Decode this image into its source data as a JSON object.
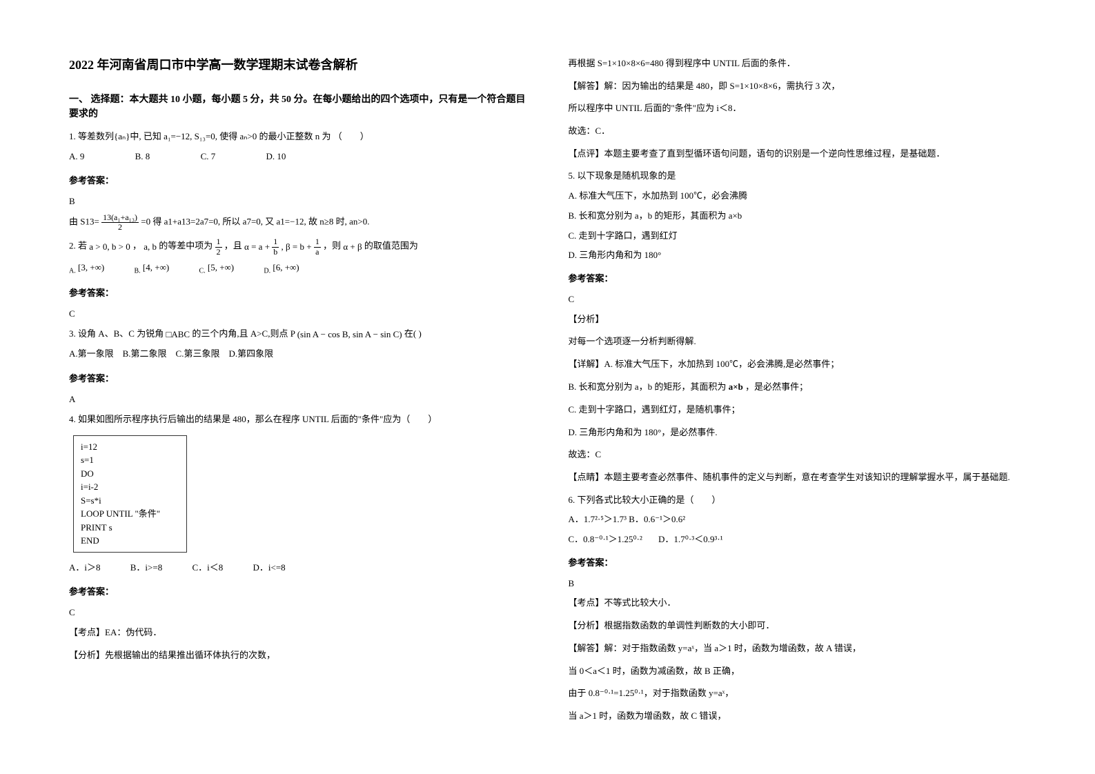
{
  "title": "2022 年河南省周口市中学高一数学理期末试卷含解析",
  "section1_heading": "一、 选择题：本大题共 10 小题，每小题 5 分，共 50 分。在每小题给出的四个选项中，只有是一个符合题目要求的",
  "q1": {
    "text": "1. 等差数列{aₙ}中, 已知 a₁=−12, S₁₃=0, 使得 aₙ>0 的最小正整数 n 为 （　　）",
    "optA": "A. 9",
    "optB": "B. 8",
    "optC": "C. 7",
    "optD": "D. 10",
    "answer_label": "参考答案：",
    "answer_letter": "B",
    "explain": "=0 得 a1+a13=2a7=0, 所以 a7=0, 又 a1=−12, 故 n≥8 时, an>0.",
    "explain_prefix": "由 S13=",
    "frac_num": "13(a₁+a₁₃)",
    "frac_den": "2"
  },
  "q2": {
    "prefix": "2. 若",
    "cond1": "a > 0, b > 0",
    "mid1": "，",
    "cond2": "a, b",
    "mid2": "的等差中项为",
    "half_num": "1",
    "half_den": "2",
    "mid3": "，且",
    "alpha_expr_a": "α = a +",
    "alpha_frac1_num": "1",
    "alpha_frac1_den": "b",
    "alpha_comma": ", β = b +",
    "alpha_frac2_num": "1",
    "alpha_frac2_den": "a",
    "mid4": "，则",
    "sum": "α + β",
    "tail": "的取值范围为",
    "optA_pre": "A.",
    "optA": "[3, +∞)",
    "optB_pre": "B.",
    "optB": "[4, +∞)",
    "optC_pre": "C.",
    "optC": "[5, +∞)",
    "optD_pre": "D.",
    "optD": "[6, +∞)",
    "answer_label": "参考答案：",
    "answer_letter": "C"
  },
  "q3": {
    "text_pre": "3. 设角 A、B、C 为锐角",
    "tri": "□ABC",
    "text_mid": "的三个内角,且 A>C,则点 P",
    "coord": "(sin A − cos B, sin A − sin C)",
    "text_suf": "在( )",
    "opts": "A.第一象限　B.第二象限　C.第三象限　D.第四象限",
    "answer_label": "参考答案：",
    "answer_letter": "A"
  },
  "q4": {
    "text": "4. 如果如图所示程序执行后输出的结果是 480，那么在程序 UNTIL 后面的\"条件\"应为（　　）",
    "code1": "i=12",
    "code2": "s=1",
    "code3": "DO",
    "code4": "i=i-2",
    "code5": "S=s*i",
    "code6": "LOOP UNTIL \"条件\"",
    "code7": "PRINT s",
    "code8": "END",
    "optA": "A．i＞8",
    "optB": "B．i>=8",
    "optC": "C．i＜8",
    "optD": "D．i<=8",
    "answer_label": "参考答案：",
    "answer_letter": "C",
    "kd": "【考点】EA：伪代码．",
    "fx": "【分析】先根据输出的结果推出循环体执行的次数，"
  },
  "col2": {
    "l1": "再根据 S=1×10×8×6=480 得到程序中 UNTIL 后面的条件．",
    "l2": "【解答】解：因为输出的结果是 480，即 S=1×10×8×6，需执行 3 次，",
    "l3": "所以程序中 UNTIL 后面的\"条件\"应为 i＜8．",
    "l4": "故选：C．",
    "l5": "【点评】本题主要考查了直到型循环语句问题，语句的识别是一个逆向性思维过程，是基础题．"
  },
  "q5": {
    "text": "5. 以下现象是随机现象的是",
    "optA": "A. 标准大气压下，水加热到 100℃，必会沸腾",
    "optB": "B. 长和宽分别为 a，b 的矩形，其面积为 a×b",
    "optC": "C. 走到十字路口，遇到红灯",
    "optD": "D. 三角形内角和为 180°",
    "answer_label": "参考答案：",
    "answer_letter": "C",
    "fx": "【分析】",
    "xj0": "对每一个选项逐一分析判断得解.",
    "xjA": "【详解】A. 标准大气压下，水加热到 100℃，必会沸腾,是必然事件；",
    "xjB_pre": "B. 长和宽分别为 a，b 的矩形，其面积为",
    "xjB_ab": "a×b",
    "xjB_suf": "，是必然事件；",
    "xjC": "C. 走到十字路口，遇到红灯，是随机事件；",
    "xjD": "D. 三角形内角和为 180°，是必然事件.",
    "sel": "故选：C",
    "ds": "【点睛】本题主要考查必然事件、随机事件的定义与判断，意在考查学生对该知识的理解掌握水平，属于基础题."
  },
  "q6": {
    "text": "6. 下列各式比较大小正确的是（　　）",
    "optA": "A．1.7²·⁵＞1.7³",
    "optB": "B．0.6⁻¹＞0.6²",
    "optC": "C．0.8⁻⁰·¹＞1.25⁰·²",
    "optD": "D．1.7⁰·³＜0.9³·¹",
    "answer_label": "参考答案：",
    "answer_letter": "B",
    "kd": "【考点】不等式比较大小．",
    "fx": "【分析】根据指数函数的单调性判断数的大小即可．",
    "jd1": "【解答】解：对于指数函数 y=aˣ，当 a＞1 时，函数为增函数，故 A 错误，",
    "jd2": "当 0＜a＜1 时，函数为减函数，故 B 正确，",
    "jd3": "由于 0.8⁻⁰·¹=1.25⁰·¹，对于指数函数 y=aˣ，",
    "jd4": "当 a＞1 时，函数为增函数，故 C 错误，"
  }
}
